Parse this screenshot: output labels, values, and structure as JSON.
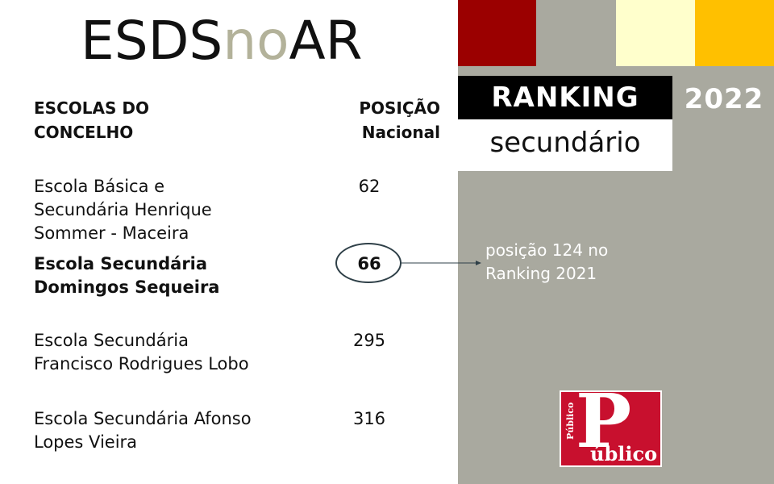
{
  "title": {
    "part1": "ESDS",
    "part2": "no",
    "part3": "AR"
  },
  "header": {
    "escolas_line1": "ESCOLAS DO",
    "escolas_line2": "CONCELHO",
    "posicao_line1": "POSIÇÃO",
    "posicao_line2": "Nacional"
  },
  "schools": [
    {
      "lines": [
        "Escola Básica e",
        "Secundária Henrique",
        "Sommer - Maceira"
      ],
      "rank": "62"
    },
    {
      "lines": [
        "Escola Secundária",
        "Domingos Sequeira"
      ],
      "rank": "66"
    },
    {
      "lines": [
        "Escola Secundária",
        "Francisco Rodrigues Lobo"
      ],
      "rank": "295"
    },
    {
      "lines": [
        "Escola Secundária Afonso",
        "Lopes Vieira"
      ],
      "rank": "316"
    }
  ],
  "ranking": {
    "label": "RANKING",
    "year": "2022",
    "level": "secundário"
  },
  "note": {
    "line1": "posição 124 no",
    "line2": "Ranking 2021"
  },
  "logo": {
    "big_letter": "P",
    "word": "úblico",
    "vertical": "Público"
  },
  "colors": {
    "panel": "#a9a99f",
    "red": "#9b0000",
    "cream": "#ffffcc",
    "gold": "#ffc000",
    "title_accent": "#b3b29a",
    "logo_red": "#c8102e"
  }
}
